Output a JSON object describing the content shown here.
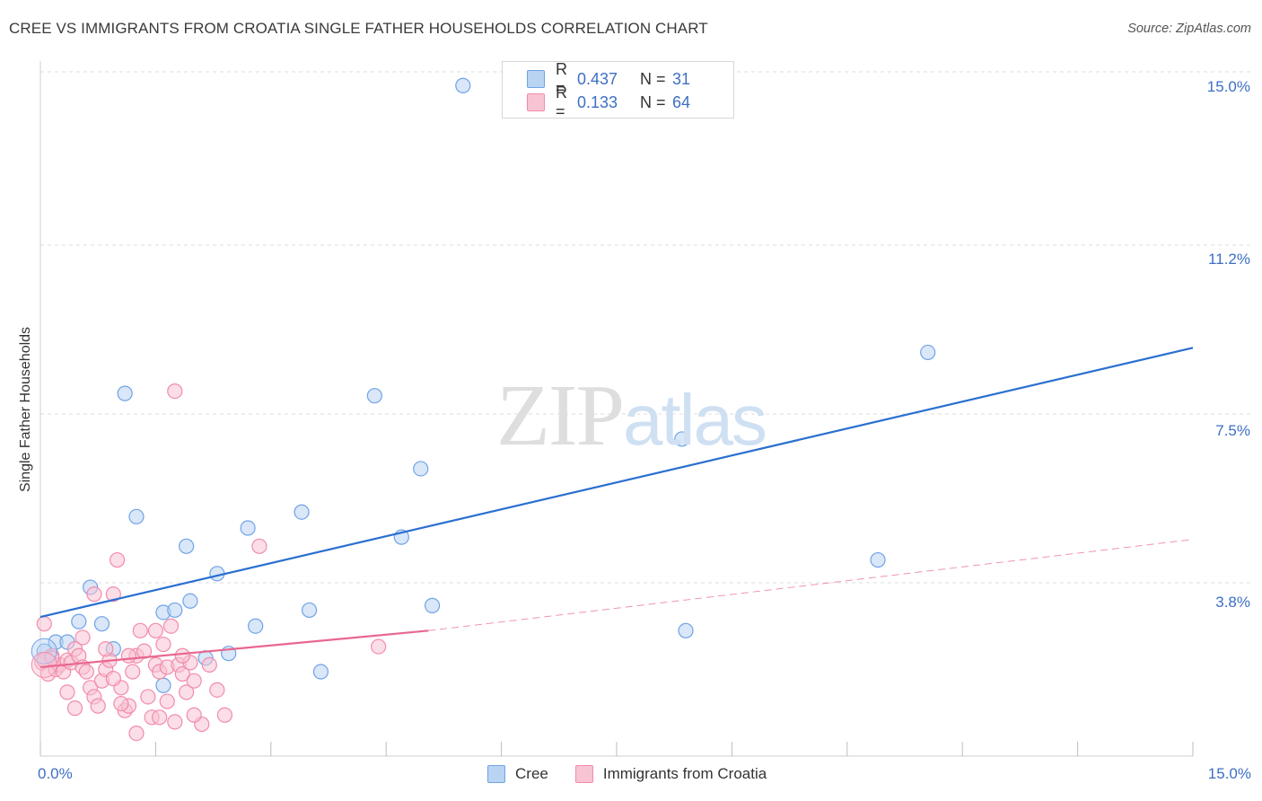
{
  "chart_data": {
    "type": "scatter",
    "title": "CREE VS IMMIGRANTS FROM CROATIA SINGLE FATHER HOUSEHOLDS CORRELATION CHART",
    "source": "Source: ZipAtlas.com",
    "xlabel": "",
    "ylabel": "Single Father Households",
    "xlim": [
      0,
      15
    ],
    "ylim": [
      0,
      15.0
    ],
    "x_tick_labels": [
      "0.0%",
      "15.0%"
    ],
    "y_ticks": [
      3.8,
      7.5,
      11.2,
      15.0
    ],
    "y_tick_labels": [
      "3.8%",
      "7.5%",
      "11.2%",
      "15.0%"
    ],
    "grid": true,
    "legend": {
      "position": "top-center",
      "entries": [
        {
          "series": "Cree",
          "r_label": "R =",
          "r_value": "0.437",
          "n_label": "N =",
          "n_value": "31"
        },
        {
          "series": "Immigrants from Croatia",
          "r_label": "R =",
          "r_value": "0.133",
          "n_label": "N =",
          "n_value": "64"
        }
      ]
    },
    "series": [
      {
        "name": "Cree",
        "color": "#6fa3e6",
        "fill": "#b9d3f3",
        "line_color": "#2a6fd0",
        "trend": {
          "x0": 0.0,
          "y0": 3.05,
          "x1": 15.0,
          "y1": 8.95
        },
        "points": [
          [
            0.05,
            2.3
          ],
          [
            0.2,
            2.5
          ],
          [
            0.35,
            2.5
          ],
          [
            0.5,
            2.95
          ],
          [
            0.65,
            3.7
          ],
          [
            0.8,
            2.9
          ],
          [
            0.95,
            2.35
          ],
          [
            1.1,
            7.95
          ],
          [
            1.25,
            5.25
          ],
          [
            1.6,
            3.15
          ],
          [
            1.75,
            3.2
          ],
          [
            1.6,
            1.55
          ],
          [
            1.95,
            3.4
          ],
          [
            1.9,
            4.6
          ],
          [
            2.15,
            2.15
          ],
          [
            2.3,
            4.0
          ],
          [
            2.45,
            2.25
          ],
          [
            2.7,
            5.0
          ],
          [
            2.8,
            2.85
          ],
          [
            3.4,
            5.35
          ],
          [
            3.5,
            3.2
          ],
          [
            3.65,
            1.85
          ],
          [
            4.35,
            7.9
          ],
          [
            4.7,
            4.8
          ],
          [
            4.95,
            6.3
          ],
          [
            5.1,
            3.3
          ],
          [
            5.5,
            14.7
          ],
          [
            8.35,
            6.95
          ],
          [
            8.4,
            2.75
          ],
          [
            10.9,
            4.3
          ],
          [
            11.55,
            8.85
          ]
        ]
      },
      {
        "name": "Immigrants from Croatia",
        "color": "#f28bab",
        "fill": "#f8c3d3",
        "line_color": "#e8678f",
        "trend": {
          "x0": 0.0,
          "y0": 1.95,
          "x1": 5.05,
          "y1": 2.75
        },
        "trend_extension": {
          "x0": 5.05,
          "y0": 2.75,
          "x1": 15.0,
          "y1": 4.75
        },
        "points": [
          [
            0.02,
            2.05
          ],
          [
            0.05,
            2.1
          ],
          [
            0.1,
            1.8
          ],
          [
            0.15,
            2.2
          ],
          [
            0.2,
            1.9
          ],
          [
            0.25,
            2.0
          ],
          [
            0.3,
            1.85
          ],
          [
            0.35,
            2.1
          ],
          [
            0.4,
            2.05
          ],
          [
            0.45,
            2.35
          ],
          [
            0.5,
            2.2
          ],
          [
            0.55,
            1.95
          ],
          [
            0.6,
            1.85
          ],
          [
            0.65,
            1.5
          ],
          [
            0.7,
            1.3
          ],
          [
            0.75,
            1.1
          ],
          [
            0.8,
            1.65
          ],
          [
            0.85,
            1.9
          ],
          [
            0.9,
            2.1
          ],
          [
            0.95,
            3.55
          ],
          [
            1.0,
            4.3
          ],
          [
            1.05,
            1.5
          ],
          [
            1.1,
            1.0
          ],
          [
            1.15,
            1.1
          ],
          [
            1.2,
            1.85
          ],
          [
            1.25,
            2.2
          ],
          [
            1.3,
            2.75
          ],
          [
            1.35,
            2.3
          ],
          [
            1.4,
            1.3
          ],
          [
            1.45,
            0.85
          ],
          [
            1.5,
            2.0
          ],
          [
            1.55,
            1.85
          ],
          [
            1.6,
            2.45
          ],
          [
            1.65,
            1.95
          ],
          [
            1.7,
            2.85
          ],
          [
            1.75,
            0.75
          ],
          [
            1.8,
            2.0
          ],
          [
            1.85,
            1.8
          ],
          [
            1.9,
            1.4
          ],
          [
            1.95,
            2.05
          ],
          [
            2.0,
            1.65
          ],
          [
            2.1,
            0.7
          ],
          [
            2.2,
            2.0
          ],
          [
            0.05,
            2.9
          ],
          [
            0.15,
            2.15
          ],
          [
            0.35,
            1.4
          ],
          [
            0.45,
            1.05
          ],
          [
            0.55,
            2.6
          ],
          [
            0.7,
            3.55
          ],
          [
            0.85,
            2.35
          ],
          [
            0.95,
            1.7
          ],
          [
            1.05,
            1.15
          ],
          [
            1.15,
            2.2
          ],
          [
            1.25,
            0.5
          ],
          [
            1.5,
            2.75
          ],
          [
            1.55,
            0.85
          ],
          [
            1.65,
            1.2
          ],
          [
            1.75,
            8.0
          ],
          [
            1.85,
            2.2
          ],
          [
            2.0,
            0.9
          ],
          [
            2.3,
            1.45
          ],
          [
            2.4,
            0.9
          ],
          [
            2.85,
            4.6
          ],
          [
            4.4,
            2.4
          ]
        ]
      }
    ]
  },
  "watermark": {
    "zip": "ZIP",
    "atlas": "atlas"
  }
}
